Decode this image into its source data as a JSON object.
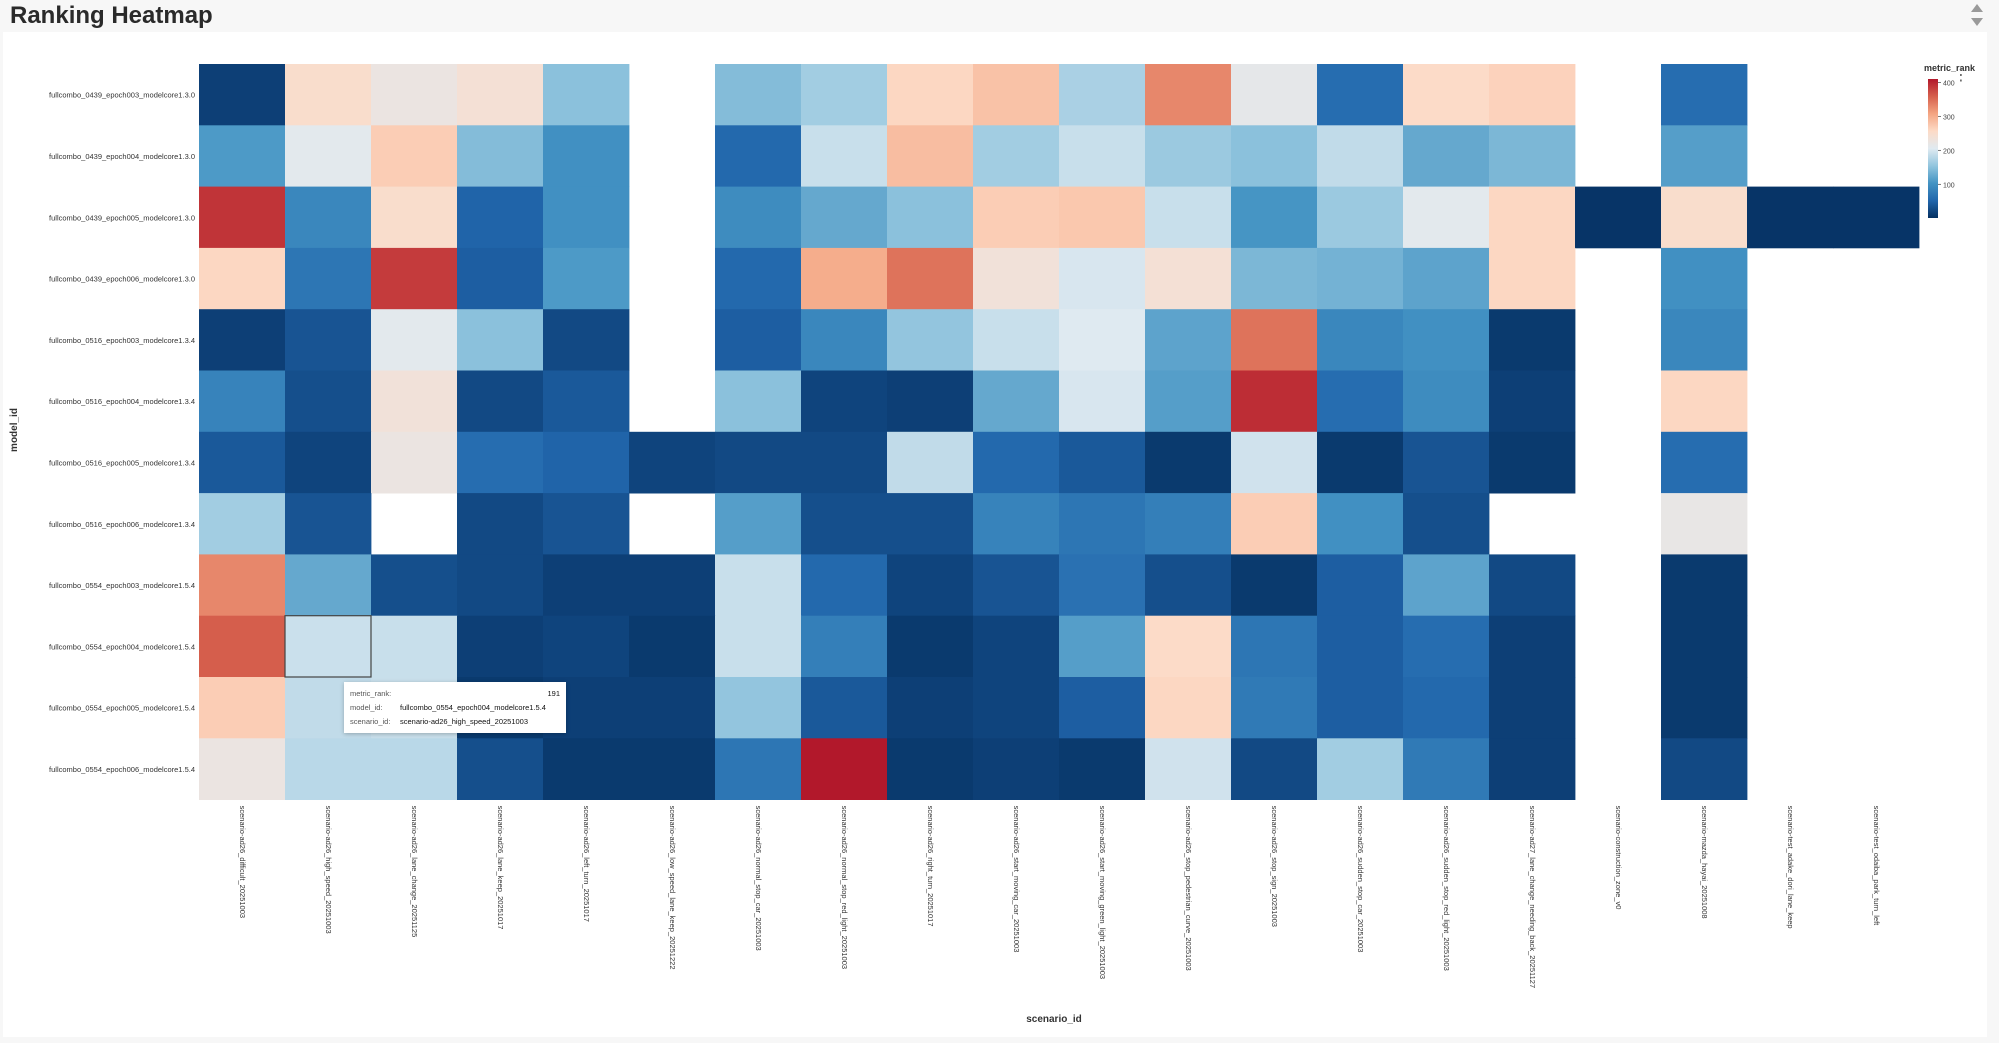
{
  "page": {
    "title": "Ranking Heatmap"
  },
  "tooltip": {
    "rank_label": "metric_rank:",
    "rank_value": "191",
    "model_label": "model_id:",
    "model_value": "fullcombo_0554_epoch004_modelcore1.5.4",
    "scenario_label": "scenario_id:",
    "scenario_value": "scenario-ad26_high_speed_20251003"
  },
  "chart_data": {
    "type": "heatmap",
    "title": "",
    "xlabel": "scenario_id",
    "ylabel": "model_id",
    "colorbar": {
      "title": "metric_rank",
      "min": 1,
      "max": 410,
      "ticks": [
        100,
        200,
        300,
        400
      ],
      "colorscale": "RdBu reversed (blue = low, red = high)"
    },
    "y": [
      "fullcombo_0439_epoch003_modelcore1.3.0",
      "fullcombo_0439_epoch004_modelcore1.3.0",
      "fullcombo_0439_epoch005_modelcore1.3.0",
      "fullcombo_0439_epoch006_modelcore1.3.0",
      "fullcombo_0516_epoch003_modelcore1.3.4",
      "fullcombo_0516_epoch004_modelcore1.3.4",
      "fullcombo_0516_epoch005_modelcore1.3.4",
      "fullcombo_0516_epoch006_modelcore1.3.4",
      "fullcombo_0554_epoch003_modelcore1.5.4",
      "fullcombo_0554_epoch004_modelcore1.5.4",
      "fullcombo_0554_epoch005_modelcore1.5.4",
      "fullcombo_0554_epoch006_modelcore1.5.4"
    ],
    "x": [
      "scenario-ad26_difficult_20251003",
      "scenario-ad26_high_speed_20251003",
      "scenario-ad26_lane_change_20251125",
      "scenario-ad26_lane_keep_20251017",
      "scenario-ad26_left_turn_20251017",
      "scenario-ad26_low_speed_lane_keep_20251222",
      "scenario-ad26_normal_stop_car_20251003",
      "scenario-ad26_normal_stop_red_light_20251003",
      "scenario-ad26_right_turn_20251017",
      "scenario-ad26_start_moving_car_20251003",
      "scenario-ad26_start_moving_green_light_20251003",
      "scenario-ad26_stop_pedestrian_curve_20251003",
      "scenario-ad26_stop_sign_20251003",
      "scenario-ad26_sudden_stop_car_20251003",
      "scenario-ad26_sudden_stop_red_light_20251003",
      "scenario-ad27_lane_change_needing_back_20251127",
      "scenario-construction_zone_v0",
      "scenario-mazda_hayai_20251008",
      "scenario-test_adake_dori_lane_keep",
      "scenario-test_odaiba_park_turn_left"
    ],
    "z": [
      [
        15,
        250,
        225,
        240,
        150,
        null,
        145,
        165,
        260,
        280,
        170,
        330,
        215,
        60,
        255,
        265,
        null,
        60,
        null,
        null
      ],
      [
        110,
        210,
        270,
        145,
        100,
        null,
        55,
        190,
        285,
        165,
        190,
        160,
        150,
        185,
        125,
        140,
        null,
        115,
        null,
        null
      ],
      [
        390,
        90,
        250,
        50,
        100,
        null,
        95,
        125,
        150,
        270,
        275,
        190,
        105,
        160,
        210,
        260,
        5,
        250,
        5,
        5
      ],
      [
        260,
        70,
        385,
        45,
        110,
        null,
        55,
        300,
        345,
        235,
        200,
        240,
        140,
        135,
        120,
        260,
        null,
        100,
        null,
        null
      ],
      [
        15,
        35,
        210,
        150,
        25,
        null,
        45,
        90,
        155,
        190,
        205,
        120,
        345,
        90,
        100,
        10,
        null,
        90,
        null,
        null
      ],
      [
        85,
        30,
        235,
        25,
        40,
        null,
        150,
        20,
        15,
        125,
        200,
        115,
        395,
        60,
        95,
        15,
        null,
        260,
        null,
        null
      ],
      [
        40,
        20,
        225,
        60,
        50,
        20,
        25,
        25,
        185,
        55,
        40,
        10,
        195,
        10,
        35,
        10,
        null,
        60,
        null,
        null
      ],
      [
        165,
        35,
        null,
        25,
        35,
        null,
        115,
        30,
        30,
        85,
        70,
        80,
        270,
        100,
        30,
        null,
        null,
        220,
        null,
        null
      ],
      [
        330,
        125,
        30,
        25,
        15,
        15,
        190,
        55,
        20,
        35,
        65,
        30,
        10,
        45,
        120,
        25,
        null,
        10,
        null,
        null
      ],
      [
        360,
        191,
        190,
        15,
        20,
        10,
        190,
        80,
        10,
        20,
        115,
        255,
        70,
        45,
        60,
        15,
        null,
        10,
        null,
        null
      ],
      [
        270,
        185,
        190,
        10,
        15,
        15,
        155,
        40,
        15,
        20,
        45,
        260,
        75,
        45,
        55,
        15,
        null,
        10,
        null,
        null
      ],
      [
        225,
        180,
        180,
        30,
        10,
        10,
        70,
        410,
        10,
        15,
        10,
        195,
        25,
        165,
        75,
        15,
        null,
        25,
        null,
        null
      ]
    ]
  }
}
